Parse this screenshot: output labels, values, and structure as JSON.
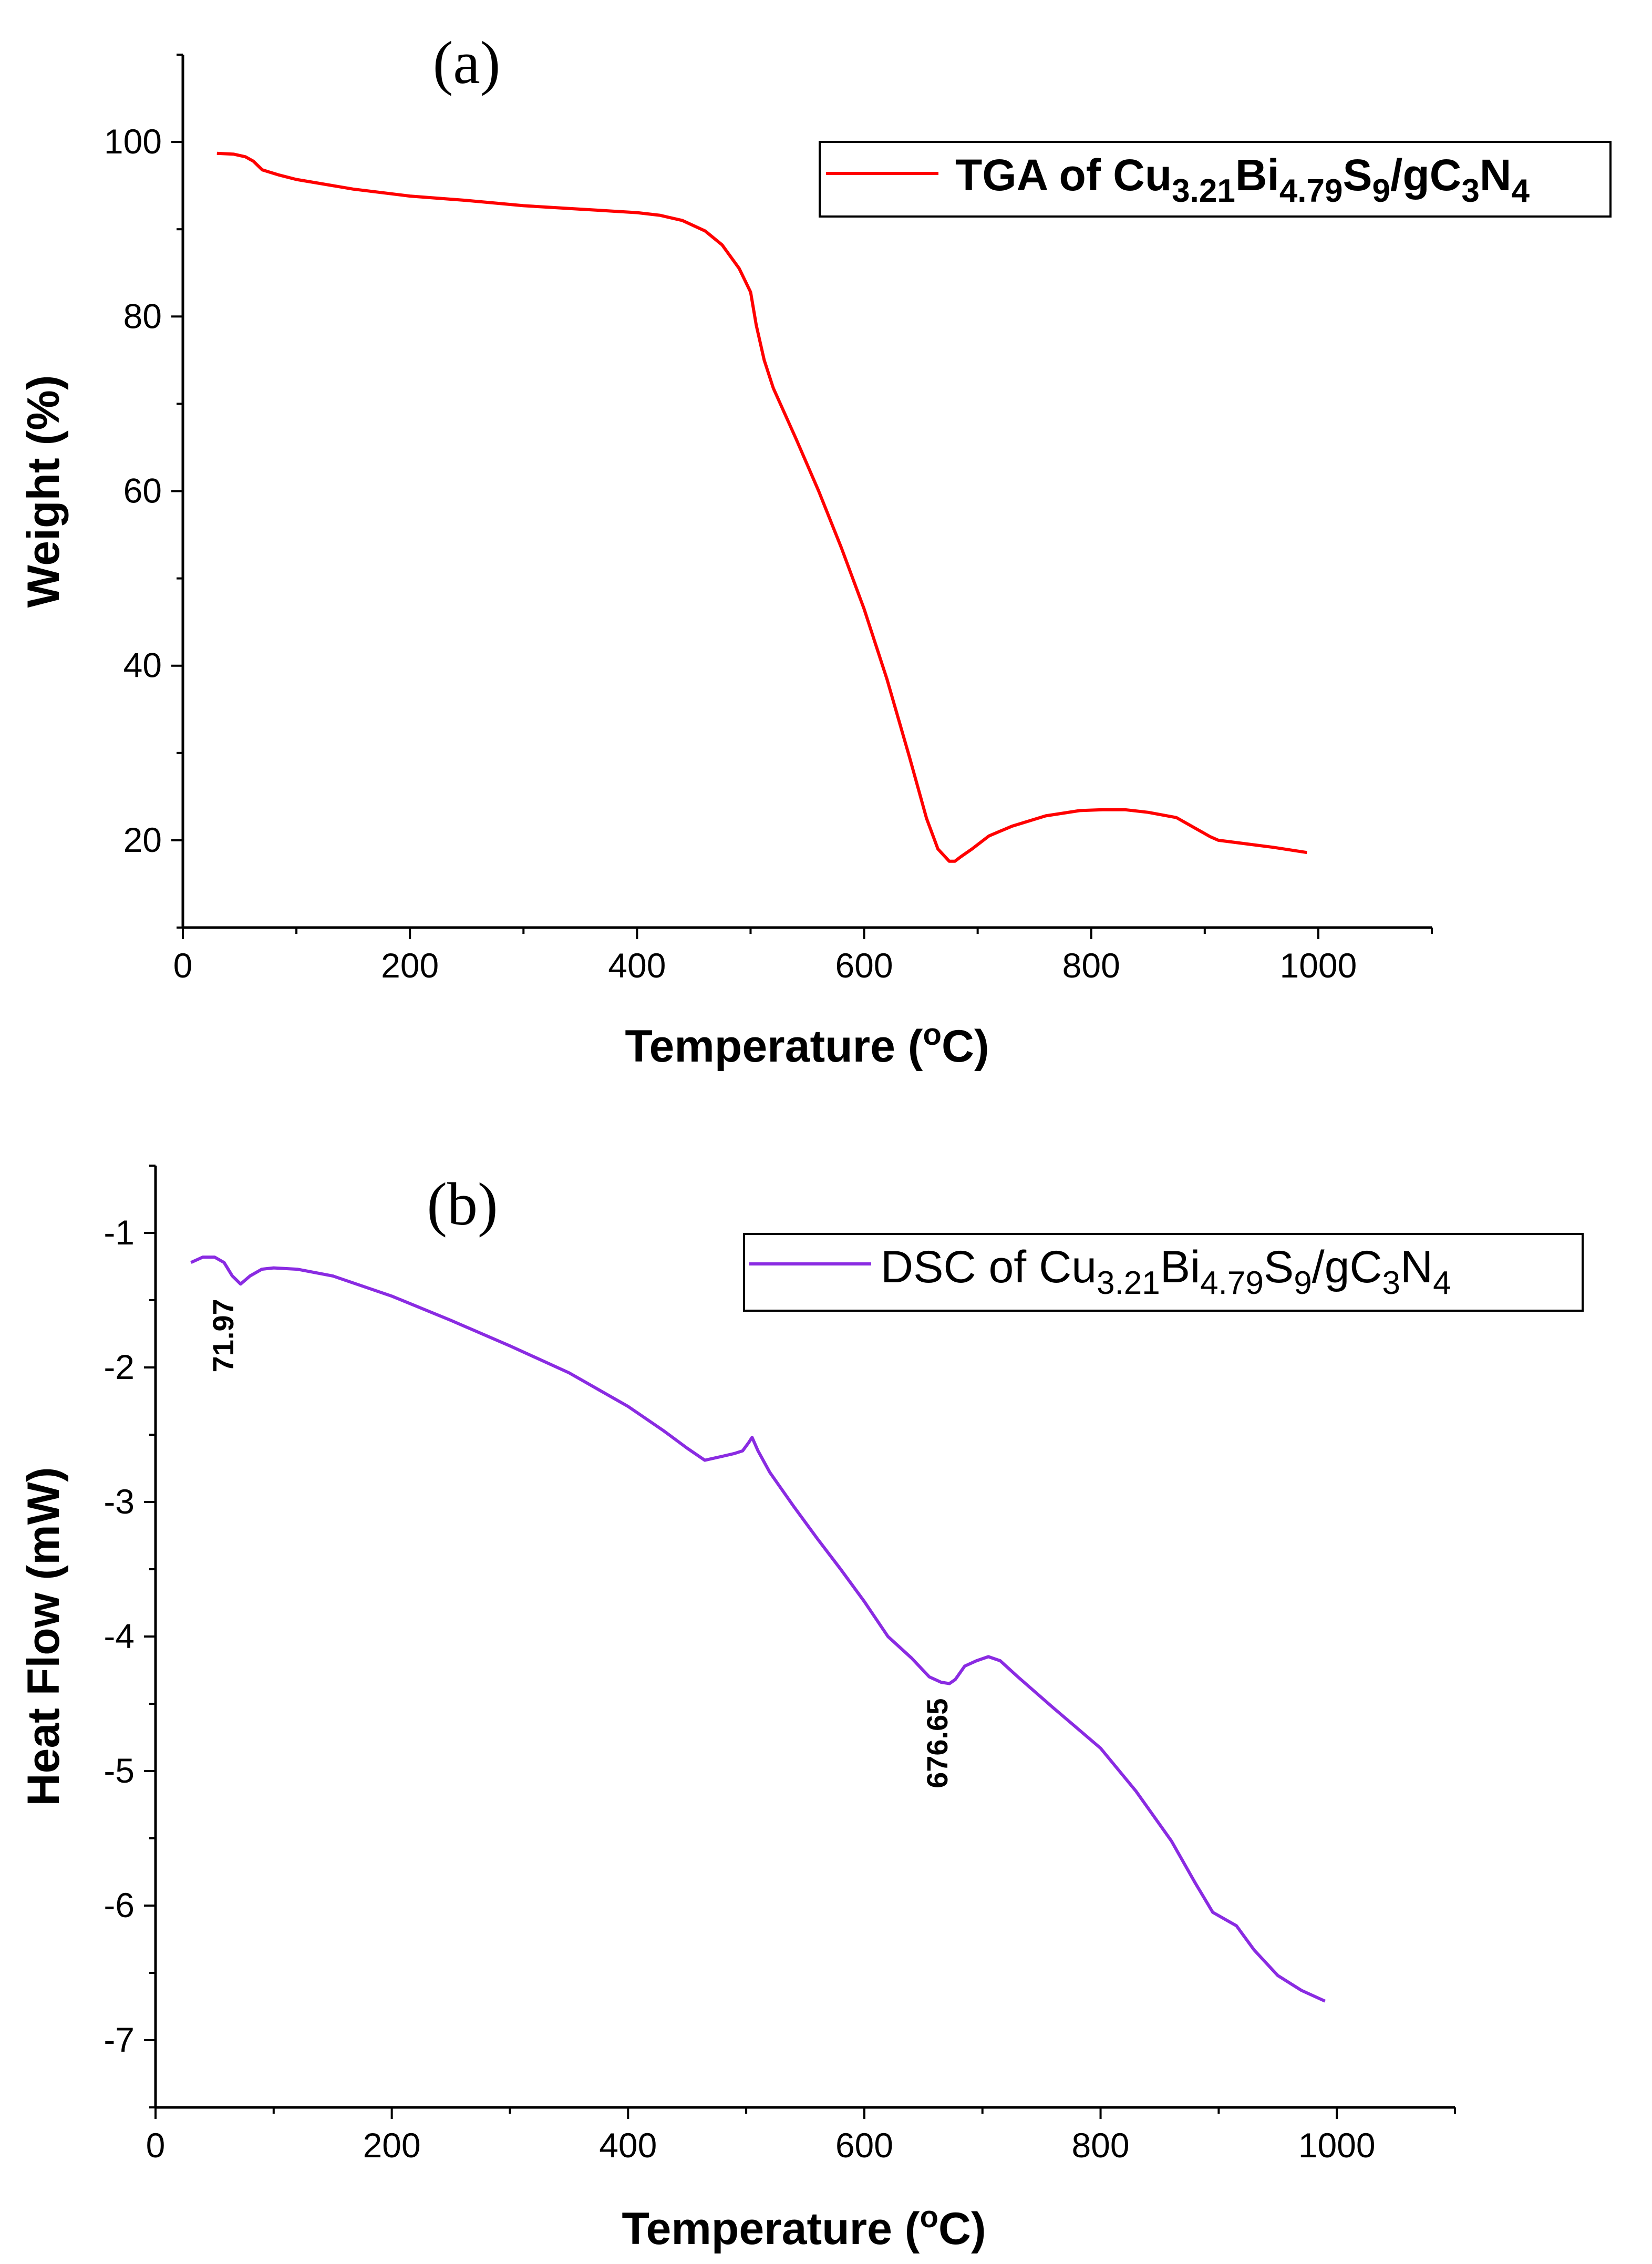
{
  "chart_data": [
    {
      "id": "tga",
      "type": "line",
      "panel_label": "(a)",
      "title": "",
      "xlabel": "Temperature (°C)",
      "ylabel": "Weight (%)",
      "xlim": [
        0,
        1100
      ],
      "ylim": [
        10,
        110
      ],
      "x_ticks": [
        0,
        200,
        400,
        600,
        800,
        1000
      ],
      "x_tick_labels": [
        "0",
        "200",
        "400",
        "600",
        "800",
        "1000"
      ],
      "y_ticks": [
        20,
        40,
        60,
        80,
        100
      ],
      "y_tick_labels": [
        "20",
        "40",
        "60",
        "80",
        "100"
      ],
      "legend": {
        "position": "top-right",
        "prefix": "TGA of ",
        "formula": [
          [
            "Cu",
            ""
          ],
          [
            "3.21",
            "sub"
          ],
          [
            "Bi",
            ""
          ],
          [
            "4.79",
            "sub"
          ],
          [
            "S",
            ""
          ],
          [
            "9",
            "sub"
          ],
          [
            "/gC",
            ""
          ],
          [
            "3",
            "sub"
          ],
          [
            "N",
            ""
          ],
          [
            "4",
            "sub"
          ]
        ]
      },
      "series": [
        {
          "name": "TGA of Cu3.21Bi4.79S9/gC3N4",
          "color": "#ff0000",
          "x": [
            30,
            45,
            55,
            62,
            70,
            85,
            100,
            150,
            200,
            250,
            300,
            350,
            400,
            420,
            440,
            460,
            475,
            490,
            500,
            505,
            512,
            520,
            540,
            560,
            580,
            600,
            620,
            640,
            655,
            665,
            675,
            680,
            685,
            695,
            710,
            730,
            760,
            790,
            810,
            830,
            850,
            875,
            890,
            905,
            912,
            930,
            960,
            990
          ],
          "y": [
            98.7,
            98.6,
            98.3,
            97.8,
            96.8,
            96.2,
            95.7,
            94.6,
            93.8,
            93.3,
            92.7,
            92.3,
            91.9,
            91.6,
            91.0,
            89.8,
            88.2,
            85.5,
            82.8,
            79.0,
            75.0,
            71.8,
            66.0,
            60.0,
            53.5,
            46.5,
            38.5,
            29.5,
            22.5,
            19.0,
            17.6,
            17.6,
            18.1,
            19.0,
            20.5,
            21.6,
            22.8,
            23.4,
            23.5,
            23.5,
            23.2,
            22.6,
            21.5,
            20.4,
            20.0,
            19.7,
            19.2,
            18.6
          ]
        }
      ],
      "annotations": []
    },
    {
      "id": "dsc",
      "type": "line",
      "panel_label": "(b)",
      "title": "",
      "xlabel": "Temperature (°C)",
      "ylabel": "Heat Flow (mW)",
      "xlim": [
        0,
        1100
      ],
      "ylim": [
        -7.5,
        -0.5
      ],
      "x_ticks": [
        0,
        200,
        400,
        600,
        800,
        1000
      ],
      "x_tick_labels": [
        "0",
        "200",
        "400",
        "600",
        "800",
        "1000"
      ],
      "y_ticks": [
        -1,
        -2,
        -3,
        -4,
        -5,
        -6,
        -7
      ],
      "y_tick_labels": [
        "-1",
        "-2",
        "-3",
        "-4",
        "-5",
        "-6",
        "-7"
      ],
      "legend": {
        "position": "top-right",
        "prefix": "DSC of ",
        "formula": [
          [
            "Cu",
            ""
          ],
          [
            "3.21",
            "sub"
          ],
          [
            "Bi",
            ""
          ],
          [
            "4.79",
            "sub"
          ],
          [
            "S",
            ""
          ],
          [
            "9",
            "sub"
          ],
          [
            "/gC",
            ""
          ],
          [
            "3",
            "sub"
          ],
          [
            "N",
            ""
          ],
          [
            "4",
            "sub"
          ]
        ]
      },
      "series": [
        {
          "name": "DSC of Cu3.21Bi4.79S9/gC3N4",
          "color": "#8a2be2",
          "x": [
            30,
            40,
            50,
            58,
            65,
            72,
            80,
            90,
            100,
            120,
            150,
            200,
            250,
            300,
            350,
            400,
            430,
            450,
            465,
            480,
            490,
            497,
            502,
            505,
            510,
            520,
            540,
            560,
            580,
            600,
            620,
            640,
            655,
            665,
            672,
            677,
            685,
            695,
            705,
            715,
            730,
            760,
            800,
            830,
            860,
            880,
            895,
            905,
            915,
            930,
            950,
            970,
            990
          ],
          "y": [
            -1.22,
            -1.18,
            -1.18,
            -1.22,
            -1.32,
            -1.38,
            -1.32,
            -1.27,
            -1.26,
            -1.27,
            -1.32,
            -1.47,
            -1.65,
            -1.84,
            -2.04,
            -2.29,
            -2.47,
            -2.6,
            -2.69,
            -2.66,
            -2.64,
            -2.62,
            -2.56,
            -2.52,
            -2.62,
            -2.78,
            -3.03,
            -3.27,
            -3.5,
            -3.74,
            -4.0,
            -4.16,
            -4.3,
            -4.34,
            -4.35,
            -4.32,
            -4.22,
            -4.18,
            -4.15,
            -4.18,
            -4.3,
            -4.53,
            -4.83,
            -5.15,
            -5.52,
            -5.83,
            -6.05,
            -6.1,
            -6.15,
            -6.33,
            -6.52,
            -6.63,
            -6.71
          ]
        }
      ],
      "annotations": [
        {
          "x": 71.97,
          "y": -1.38,
          "text": "71.97"
        },
        {
          "x": 676.65,
          "y": -4.35,
          "text": "676.65"
        }
      ]
    }
  ]
}
